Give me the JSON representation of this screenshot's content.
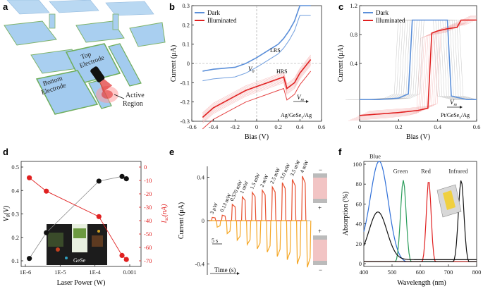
{
  "panels": {
    "a": {
      "label": "a",
      "top_electrode": [
        "Top",
        "Electrode"
      ],
      "bottom_electrode": [
        "Bottom",
        "Electrode"
      ],
      "active_region": [
        "Active",
        "Region"
      ]
    },
    "b": {
      "label": "b"
    },
    "c": {
      "label": "c"
    },
    "d": {
      "label": "d",
      "inset_label": "GeSe"
    },
    "e": {
      "label": "e"
    },
    "f": {
      "label": "f"
    }
  },
  "colors": {
    "dark": "#5b8fd9",
    "illuminated": "#e02020",
    "accent_red": "#e02020",
    "blue": "#2f6fd8",
    "green": "#2a9d5a",
    "black": "#111111",
    "electrode": "#9ec9ef",
    "substrate": "#7fb36a"
  },
  "chart_data": [
    {
      "id": "b",
      "type": "line",
      "xlabel": "Bias (V)",
      "ylabel": "Current (μA)",
      "xlim": [
        -0.6,
        0.6
      ],
      "ylim": [
        -0.3,
        0.3
      ],
      "xticks": [
        "-0.6",
        "-0.4",
        "-0.2",
        "0",
        "0.2",
        "0.4",
        "0.6"
      ],
      "yticks": [
        "-0.3",
        "-0.2",
        "-0.1",
        "0",
        "0.1",
        "0.2",
        "0.3"
      ],
      "legend": [
        "Dark",
        "Illuminated"
      ],
      "annotations": {
        "lrs": "LRS",
        "hrs": "HRS",
        "v0": "V",
        "v0_sub": "0",
        "vm": "V",
        "vm_sub": "m",
        "device": "Ag/GeSe",
        "device_sub": "x",
        "device_tail": "/Ag"
      },
      "series": [
        {
          "name": "Dark",
          "x": [
            -0.5,
            -0.4,
            -0.3,
            -0.2,
            -0.15,
            -0.1,
            0,
            0.1,
            0.2,
            0.25,
            0.3,
            0.35,
            0.4,
            0.45,
            0.5
          ],
          "y": [
            -0.04,
            -0.03,
            -0.025,
            -0.02,
            -0.01,
            0.0,
            0.03,
            0.065,
            0.1,
            0.13,
            0.17,
            0.22,
            0.3,
            0.3,
            0.3
          ]
        },
        {
          "name": "Illuminated",
          "x": [
            -0.5,
            -0.4,
            -0.3,
            -0.2,
            -0.1,
            0,
            0.1,
            0.2,
            0.25,
            0.28,
            0.35,
            0.4,
            0.5
          ],
          "y": [
            -0.28,
            -0.23,
            -0.2,
            -0.17,
            -0.14,
            -0.12,
            -0.1,
            -0.08,
            -0.07,
            -0.13,
            -0.1,
            -0.05,
            0.02
          ]
        }
      ]
    },
    {
      "id": "c",
      "type": "line",
      "xlabel": "Bias (V)",
      "ylabel": "Current (μA)",
      "xlim": [
        0,
        0.6
      ],
      "ylim": [
        -0.4,
        1.2
      ],
      "xticks": [
        "0",
        "0.2",
        "0.4",
        "0.6"
      ],
      "yticks": [
        "0.4",
        "0.8",
        "1.2"
      ],
      "legend": [
        "Dark",
        "Illuminated"
      ],
      "annotations": {
        "vm": "V",
        "vm_sub": "m",
        "device": "Pt/GeSe",
        "device_sub": "x",
        "device_tail": "/Ag"
      },
      "series": [
        {
          "name": "Dark",
          "x": [
            0,
            0.1,
            0.2,
            0.25,
            0.27,
            0.3,
            0.35,
            0.4,
            0.45,
            0.47,
            0.5,
            0.55,
            0.6
          ],
          "y": [
            -0.1,
            -0.1,
            -0.08,
            -0.02,
            1.0,
            1.0,
            1.0,
            1.0,
            1.0,
            -0.05,
            -0.07,
            -0.1,
            -0.1
          ]
        },
        {
          "name": "Illuminated",
          "x": [
            0,
            0.1,
            0.2,
            0.3,
            0.35,
            0.37,
            0.4,
            0.45,
            0.5,
            0.52,
            0.55,
            0.6
          ],
          "y": [
            -0.32,
            -0.3,
            -0.28,
            -0.25,
            -0.22,
            0.82,
            0.85,
            0.88,
            0.9,
            1.0,
            1.0,
            1.0
          ]
        }
      ]
    },
    {
      "id": "d",
      "type": "line",
      "xlabel": "Laser Power (W)",
      "ylabel_left": "V",
      "ylabel_left_sub": "0",
      "ylabel_left_tail": "(V)",
      "ylabel_right": "I",
      "ylabel_right_sub": "sc",
      "ylabel_right_tail": "(nA)",
      "xscale": "log",
      "xlim": [
        1e-06,
        0.001
      ],
      "xticks": [
        "1E-6",
        "1E-5",
        "1E-4",
        "0.001"
      ],
      "ylim_left": [
        0.1,
        0.5
      ],
      "yticks_left": [
        "0.1",
        "0.2",
        "0.3",
        "0.4",
        "0.5"
      ],
      "ylim_right": [
        -70,
        0
      ],
      "yticks_right": [
        "0",
        "-10",
        "-20",
        "-30",
        "-40",
        "-50",
        "-60",
        "-70"
      ],
      "series": [
        {
          "name": "V0",
          "x": [
            1.3e-06,
            4e-06,
            0.00013,
            0.0006,
            0.0008
          ],
          "y": [
            0.11,
            0.22,
            0.44,
            0.46,
            0.45
          ]
        },
        {
          "name": "Isc",
          "x": [
            1.3e-06,
            4e-06,
            0.00013,
            0.0006,
            0.0008
          ],
          "y": [
            -8,
            -18,
            -37,
            -66,
            -69
          ]
        }
      ]
    },
    {
      "id": "e",
      "type": "line",
      "xlabel": "Time (s)",
      "ylabel": "Current (μA)",
      "ylim": [
        -0.5,
        0.5
      ],
      "yticks": [
        "0.4",
        "0",
        "-0.4"
      ],
      "scale_bar": "5 s",
      "series_labels": [
        "3 μW",
        "0.13 mW",
        "0.570 mW",
        "1 mW",
        "1.5 mW",
        "2 mW",
        "2.5 mW",
        "3.0 mW",
        "3.5 mW",
        "4 mW"
      ],
      "peaks_pos": [
        0.03,
        0.05,
        0.15,
        0.22,
        0.26,
        0.28,
        0.31,
        0.35,
        0.38,
        0.41
      ],
      "peaks_neg": [
        -0.06,
        -0.12,
        -0.18,
        -0.22,
        -0.26,
        -0.29,
        -0.33,
        -0.36,
        -0.4,
        -0.43
      ]
    },
    {
      "id": "f",
      "type": "line",
      "xlabel": "Wavelength (nm)",
      "ylabel": "Absorption (%)",
      "xlim": [
        400,
        800
      ],
      "ylim": [
        0,
        100
      ],
      "xticks": [
        "400",
        "500",
        "600",
        "700",
        "800"
      ],
      "yticks": [
        "0",
        "20",
        "40",
        "60",
        "80",
        "100"
      ],
      "series": [
        {
          "name": "Blue",
          "peak": 455,
          "max": 99
        },
        {
          "name": "Green",
          "peak": 540,
          "max": 84
        },
        {
          "name": "Red",
          "peak": 630,
          "max": 84
        },
        {
          "name": "Infrared",
          "peak": 745,
          "max": 84
        }
      ]
    }
  ]
}
